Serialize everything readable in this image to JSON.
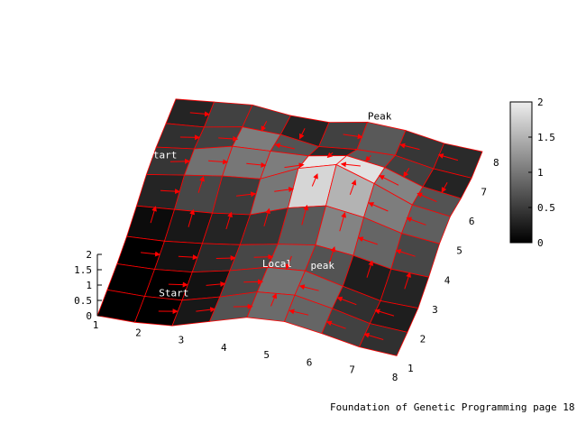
{
  "caption": "Foundation of Genetic Programming page 18",
  "chart_data": {
    "type": "heatmap",
    "surface": "3d-surface-with-palette-colorbar",
    "x": [
      1,
      2,
      3,
      4,
      5,
      6,
      7,
      8
    ],
    "y": [
      1,
      2,
      3,
      4,
      5,
      6,
      7,
      8
    ],
    "z_ticks": [
      0,
      0.5,
      1,
      1.5,
      2
    ],
    "zlim": [
      0,
      2
    ],
    "colorbar_ticks": [
      0,
      0.5,
      1,
      1.5,
      2
    ],
    "colormap": "gray",
    "cells": [
      [
        0.0,
        0.0,
        0.2,
        0.7,
        0.9,
        0.85,
        0.55,
        0.4
      ],
      [
        0.0,
        0.0,
        0.15,
        0.6,
        0.95,
        0.9,
        0.4,
        0.25
      ],
      [
        0.0,
        0.15,
        0.35,
        0.6,
        0.85,
        0.7,
        0.25,
        0.3
      ],
      [
        0.1,
        0.2,
        0.3,
        0.45,
        0.75,
        1.1,
        0.85,
        0.6
      ],
      [
        0.3,
        0.6,
        0.5,
        1.0,
        1.8,
        1.5,
        1.05,
        0.8
      ],
      [
        0.45,
        0.95,
        1.0,
        1.05,
        1.95,
        1.9,
        1.1,
        0.7
      ],
      [
        0.4,
        0.55,
        1.05,
        0.7,
        0.35,
        0.75,
        0.55,
        0.3
      ],
      [
        0.3,
        0.55,
        0.55,
        0.3,
        0.55,
        0.75,
        0.45,
        0.35
      ]
    ],
    "annotations": [
      {
        "text": "Start",
        "x": 2.6,
        "y": 1.7,
        "on_surface": true
      },
      {
        "text": "Start",
        "x": 1.2,
        "y": 6.0,
        "on_surface": true
      },
      {
        "text": "Local",
        "x": 4.6,
        "y": 3.2,
        "on_surface": true
      },
      {
        "text": "peak",
        "x": 5.6,
        "y": 3.4,
        "on_surface": true
      },
      {
        "text": "Peak",
        "x": 5.6,
        "y": 8.2,
        "on_surface": false
      }
    ],
    "arrow_color": "#ff0000",
    "grid": false
  }
}
